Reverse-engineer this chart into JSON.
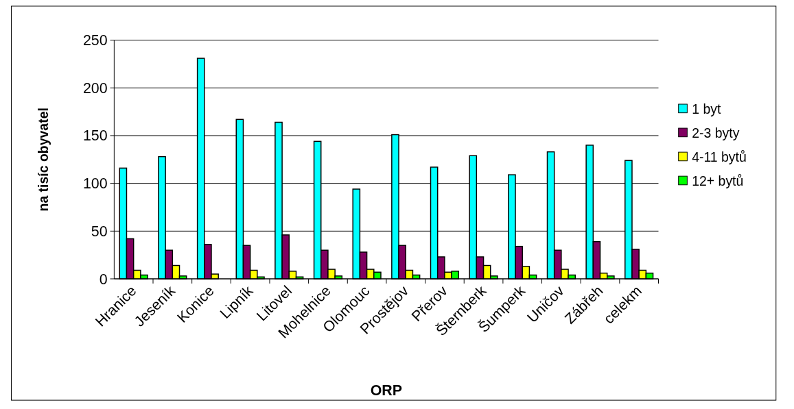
{
  "chart_data": {
    "type": "bar",
    "xlabel": "ORP",
    "ylabel": "na tisíc obyvatel",
    "categories": [
      "Hranice",
      "Jeseník",
      "Konice",
      "Lipník",
      "Litovel",
      "Mohelnice",
      "Olomouc",
      "Prostějov",
      "Přerov",
      "Šternberk",
      "Šumperk",
      "Uničov",
      "Zábřeh",
      "celekm"
    ],
    "series": [
      {
        "name": "1 byt",
        "color": "#00ffff",
        "values": [
          116,
          128,
          231,
          167,
          164,
          144,
          94,
          151,
          117,
          129,
          109,
          133,
          140,
          124
        ]
      },
      {
        "name": "2-3 byty",
        "color": "#800060",
        "values": [
          42,
          30,
          36,
          35,
          46,
          30,
          28,
          35,
          23,
          23,
          34,
          30,
          39,
          31
        ]
      },
      {
        "name": "4-11 bytů",
        "color": "#ffff00",
        "values": [
          9,
          14,
          5,
          9,
          8,
          10,
          10,
          9,
          7,
          14,
          13,
          10,
          6,
          9
        ]
      },
      {
        "name": "12+ bytů",
        "color": "#00ff00",
        "values": [
          4,
          3,
          null,
          2,
          2,
          3,
          7,
          4,
          8,
          3,
          4,
          4,
          3,
          6
        ]
      }
    ],
    "ylim": [
      0,
      250
    ],
    "yticks": [
      0,
      50,
      100,
      150,
      200,
      250
    ],
    "grid": "y",
    "legend": "right"
  }
}
